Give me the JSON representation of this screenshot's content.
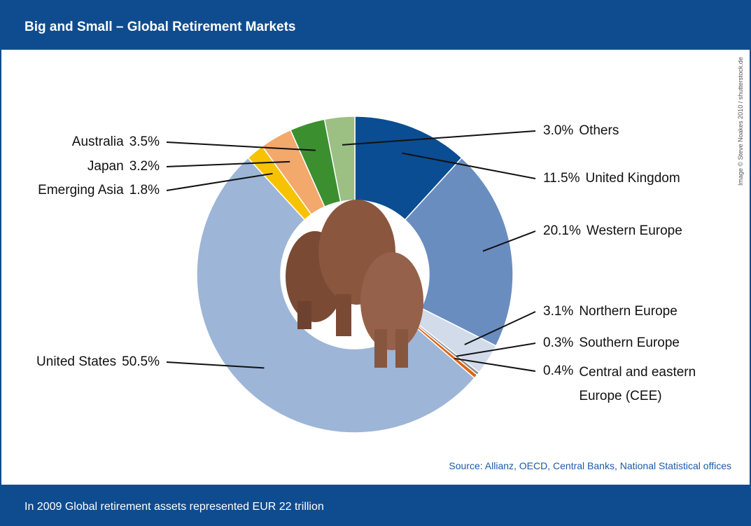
{
  "header": {
    "title": "Big and Small – Global Retirement Markets"
  },
  "chart_data": {
    "type": "pie",
    "donut": true,
    "categories": [
      "United Kingdom",
      "Western Europe",
      "Northern Europe",
      "Southern Europe",
      "Central and eastern Europe (CEE)",
      "United States",
      "Emerging Asia",
      "Japan",
      "Australia",
      "Others"
    ],
    "values": [
      11.5,
      20.1,
      3.1,
      0.3,
      0.4,
      50.5,
      1.8,
      3.2,
      3.5,
      3.0
    ],
    "value_labels": [
      "11.5%",
      "20.1%",
      "3.1%",
      "0.3%",
      "0.4%",
      "50.5%",
      "1.8%",
      "3.2%",
      "3.5%",
      "3.0%"
    ],
    "colors": [
      "#0b4d92",
      "#6a8dc0",
      "#d2dbea",
      "#8a8d92",
      "#e0640e",
      "#9db5d7",
      "#f7c300",
      "#f3a86c",
      "#3b8f2f",
      "#9cbf84"
    ]
  },
  "source": "Source: Allianz, OECD, Central Banks, National Statistical offices",
  "credit": "Image © Steve Noakes 2010 / shutterstock.de",
  "footer": "In 2009 Global retirement assets represented EUR 22 trillion"
}
